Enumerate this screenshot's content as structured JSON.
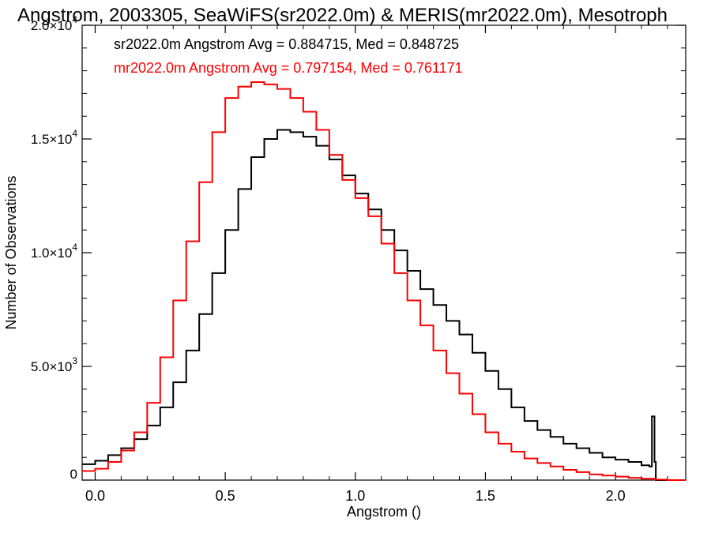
{
  "chart_data": {
    "type": "line",
    "step": true,
    "title": "Angstrom, 2003305, SeaWiFS(sr2022.0m) & MERIS(mr2022.0m), Mesotroph",
    "xlabel": "Angstrom ()",
    "ylabel": "Number of Observations",
    "xlim": [
      -0.05,
      2.27
    ],
    "ylim": [
      0,
      20000
    ],
    "xticks": [
      0.0,
      0.5,
      1.0,
      1.5,
      2.0
    ],
    "xtick_labels": [
      "0.0",
      "0.5",
      "1.0",
      "1.5",
      "2.0"
    ],
    "yticks": [
      0,
      5000,
      10000,
      15000,
      20000
    ],
    "ytick_labels": [
      {
        "mant": "0",
        "exp": ""
      },
      {
        "mant": "5.0×10",
        "exp": "3"
      },
      {
        "mant": "1.0×10",
        "exp": "4"
      },
      {
        "mant": "1.5×10",
        "exp": "4"
      },
      {
        "mant": "2.0×10",
        "exp": "4"
      }
    ],
    "grid": false,
    "legend_position": "top-left",
    "annotations": [
      {
        "text": "sr2022.0m Angstrom Avg = 0.884715, Med = 0.848725",
        "color": "#000000"
      },
      {
        "text": "mr2022.0m Angstrom Avg = 0.797154, Med = 0.761171",
        "color": "#ff0000"
      }
    ],
    "series": [
      {
        "color": "#000000",
        "x": [
          -0.05,
          0.0,
          0.05,
          0.1,
          0.15,
          0.2,
          0.25,
          0.3,
          0.35,
          0.4,
          0.45,
          0.5,
          0.55,
          0.6,
          0.65,
          0.7,
          0.75,
          0.8,
          0.85,
          0.9,
          0.95,
          1.0,
          1.05,
          1.1,
          1.15,
          1.2,
          1.25,
          1.3,
          1.35,
          1.4,
          1.45,
          1.5,
          1.55,
          1.6,
          1.65,
          1.7,
          1.75,
          1.8,
          1.85,
          1.9,
          1.95,
          2.0,
          2.05,
          2.1,
          2.13,
          2.14,
          2.15,
          2.155,
          2.2,
          2.27
        ],
        "y": [
          700,
          850,
          1100,
          1400,
          1800,
          2400,
          3200,
          4300,
          5700,
          7300,
          9100,
          11000,
          12800,
          14200,
          15000,
          15400,
          15300,
          15100,
          14700,
          14100,
          13400,
          12600,
          11900,
          11000,
          10100,
          9200,
          8400,
          7700,
          7000,
          6400,
          5600,
          4800,
          4000,
          3200,
          2600,
          2200,
          1900,
          1600,
          1400,
          1200,
          1000,
          900,
          800,
          650,
          600,
          2800,
          800,
          0,
          0,
          0
        ]
      },
      {
        "color": "#ff0000",
        "x": [
          -0.05,
          0.0,
          0.05,
          0.1,
          0.15,
          0.2,
          0.25,
          0.3,
          0.35,
          0.4,
          0.45,
          0.5,
          0.55,
          0.6,
          0.65,
          0.7,
          0.75,
          0.8,
          0.85,
          0.9,
          0.95,
          1.0,
          1.05,
          1.1,
          1.15,
          1.2,
          1.25,
          1.3,
          1.35,
          1.4,
          1.45,
          1.5,
          1.55,
          1.6,
          1.65,
          1.7,
          1.75,
          1.8,
          1.85,
          1.9,
          1.95,
          2.0,
          2.05,
          2.1,
          2.15,
          2.2,
          2.27
        ],
        "y": [
          400,
          500,
          800,
          1300,
          2100,
          3400,
          5400,
          7900,
          10500,
          13100,
          15300,
          16800,
          17300,
          17500,
          17400,
          17200,
          16800,
          16200,
          15400,
          14300,
          13200,
          12400,
          11600,
          10400,
          9100,
          7900,
          6800,
          5700,
          4700,
          3800,
          2900,
          2100,
          1600,
          1250,
          950,
          750,
          600,
          450,
          350,
          250,
          200,
          150,
          100,
          60,
          20,
          0,
          0
        ]
      }
    ]
  }
}
